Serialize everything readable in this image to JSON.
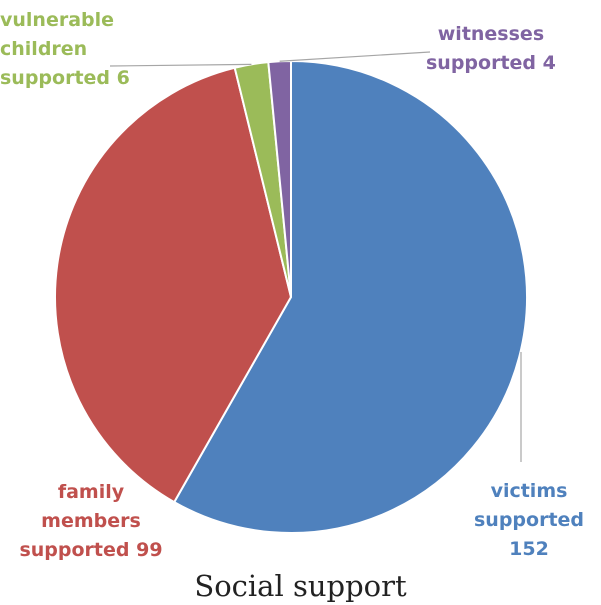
{
  "chart_data": {
    "type": "pie",
    "title": "Social support",
    "slices": [
      {
        "label_lines": [
          "victims",
          "supported",
          "152"
        ],
        "label": "victims supported 152",
        "value": 152,
        "color": "#4f81bd"
      },
      {
        "label_lines": [
          "family",
          "members",
          "supported 99"
        ],
        "label": "family members supported 99",
        "value": 99,
        "color": "#c0504d"
      },
      {
        "label_lines": [
          "vulnerable",
          "children",
          "supported 6"
        ],
        "label": "vulnerable children supported 6",
        "value": 6,
        "color": "#9bbb59"
      },
      {
        "label_lines": [
          "witnesses",
          "supported 4"
        ],
        "label": "witnesses supported 4",
        "value": 4,
        "color": "#8064a2"
      }
    ],
    "start_angle_deg": 0,
    "direction": "clockwise"
  }
}
